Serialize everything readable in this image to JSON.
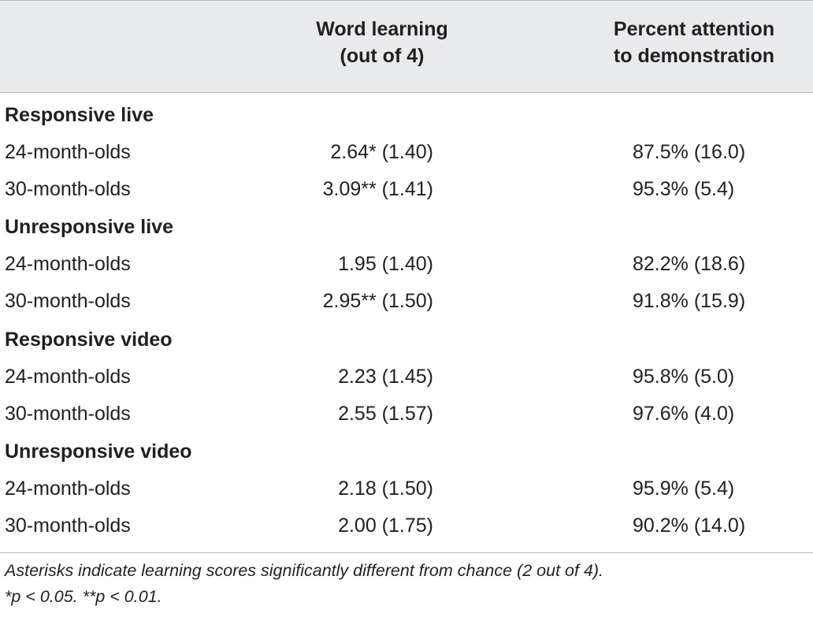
{
  "table": {
    "headers": {
      "word_learning": [
        "Word learning",
        "(out of 4)"
      ],
      "attention": [
        "Percent attention",
        "to demonstration"
      ]
    },
    "groups": [
      {
        "label": "Responsive live",
        "rows": [
          {
            "age": "24-month-olds",
            "word_learning": "2.64* (1.40)",
            "attention": "87.5% (16.0)"
          },
          {
            "age": "30-month-olds",
            "word_learning": "3.09** (1.41)",
            "attention": "95.3% (5.4)"
          }
        ]
      },
      {
        "label": "Unresponsive live",
        "rows": [
          {
            "age": "24-month-olds",
            "word_learning": "1.95 (1.40)",
            "attention": "82.2% (18.6)"
          },
          {
            "age": "30-month-olds",
            "word_learning": "2.95** (1.50)",
            "attention": "91.8% (15.9)"
          }
        ]
      },
      {
        "label": "Responsive video",
        "rows": [
          {
            "age": "24-month-olds",
            "word_learning": "2.23 (1.45)",
            "attention": "95.8% (5.0)"
          },
          {
            "age": "30-month-olds",
            "word_learning": "2.55 (1.57)",
            "attention": "97.6% (4.0)"
          }
        ]
      },
      {
        "label": "Unresponsive video",
        "rows": [
          {
            "age": "24-month-olds",
            "word_learning": "2.18 (1.50)",
            "attention": "95.9% (5.4)"
          },
          {
            "age": "30-month-olds",
            "word_learning": "2.00 (1.75)",
            "attention": "90.2% (14.0)"
          }
        ]
      }
    ],
    "footnote": [
      "Asterisks indicate learning scores significantly different from chance (2 out of 4).",
      "*p < 0.05. **p < 0.01."
    ]
  },
  "colors": {
    "header_background": "#e8eaeb",
    "text": "#231f20",
    "rule": "#b8b8b8"
  }
}
